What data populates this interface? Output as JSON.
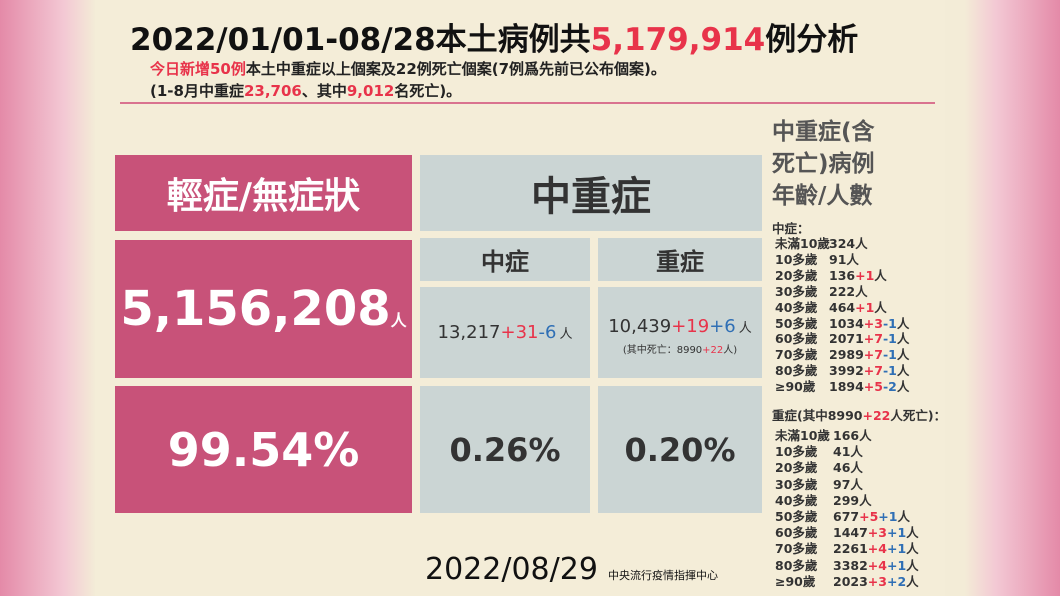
{
  "header": {
    "title": [
      "2022/01/01-08/28本土病例共",
      "5,179,914",
      "例分析"
    ],
    "lines": [
      [
        "今日新增50例",
        "本土中重症以上個案及22例死亡個案(7例爲先前已公布個案)。"
      ],
      [
        "(1-8月中重症",
        "23,706",
        "、其中",
        "9,012",
        "名死亡)。"
      ]
    ]
  },
  "table": {
    "mild": {
      "header": "輕症/無症狀",
      "count": "5,156,208",
      "unit": "人",
      "percent": "99.54%"
    },
    "severe": {
      "header": "中重症",
      "columns": [
        {
          "header": "中症",
          "count": [
            "13,217",
            "+31",
            "-6",
            "人"
          ],
          "percent": "0.26%"
        },
        {
          "header": "重症",
          "count": [
            "10,439",
            "+19",
            "+6",
            "人"
          ],
          "note": [
            "(其中死亡：8990",
            "+22",
            "人)"
          ],
          "percent": "0.20%"
        }
      ]
    }
  },
  "side": {
    "heading": [
      "中重症(含",
      "死亡)病例",
      "年齡/人數"
    ],
    "groups": [
      {
        "label": [
          "中症："
        ],
        "rows": [
          [
            "未滿10歲",
            "324人"
          ],
          [
            "10多歲",
            "91人"
          ],
          [
            "20多歲",
            "136",
            "+1",
            "人"
          ],
          [
            "30多歲",
            "222人"
          ],
          [
            "40多歲",
            "464",
            "+1",
            "人"
          ],
          [
            "50多歲",
            "1034",
            "+3",
            "-1",
            "人"
          ],
          [
            "60多歲",
            "2071",
            "+7",
            "-1",
            "人"
          ],
          [
            "70多歲",
            "2989",
            "+7",
            "-1",
            "人"
          ],
          [
            "80多歲",
            "3992",
            "+7",
            "-1",
            "人"
          ],
          [
            "≥90歲",
            "1894",
            "+5",
            "-2",
            "人"
          ]
        ]
      },
      {
        "label": [
          "重症(其中8990",
          "+22",
          "人死亡)："
        ],
        "rows": [
          [
            "未滿10歲",
            "166人"
          ],
          [
            "10多歲",
            "41人"
          ],
          [
            "20多歲",
            "46人"
          ],
          [
            "30多歲",
            "97人"
          ],
          [
            "40多歲",
            "299人"
          ],
          [
            "50多歲",
            "677",
            "+5",
            "+1",
            "人"
          ],
          [
            "60多歲",
            "1447",
            "+3",
            "+1",
            "人"
          ],
          [
            "70多歲",
            "2261",
            "+4",
            "+1",
            "人"
          ],
          [
            "80多歲",
            "3382",
            "+4",
            "+1",
            "人"
          ],
          [
            "≥90歲",
            "2023",
            "+3",
            "+2",
            "人"
          ]
        ]
      }
    ]
  },
  "footer": {
    "date": "2022/08/29",
    "organization": "中央流行疫情指揮中心"
  }
}
